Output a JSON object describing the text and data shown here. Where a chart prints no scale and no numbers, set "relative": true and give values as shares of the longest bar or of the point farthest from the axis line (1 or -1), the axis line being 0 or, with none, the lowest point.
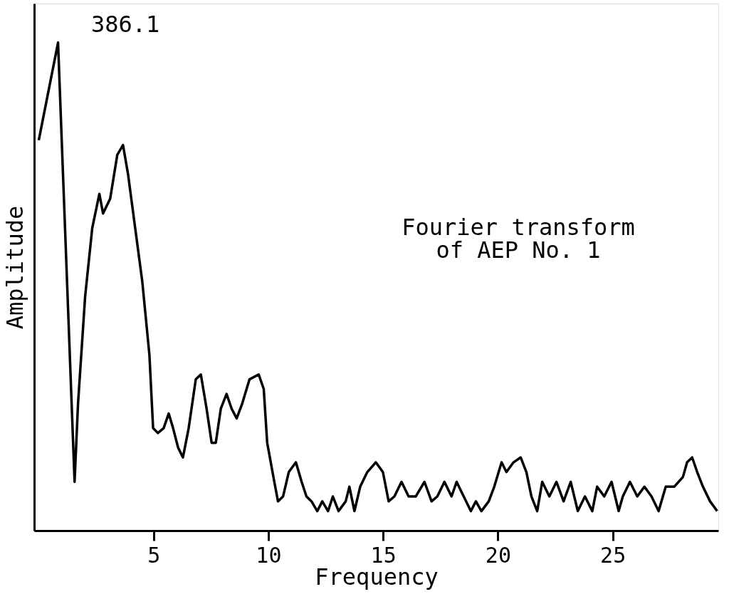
{
  "chart_data": {
    "type": "line",
    "title": "Fourier transform\nof AEP No. 1",
    "xlabel": "Frequency",
    "ylabel": "Amplitude",
    "relative": true,
    "annotations": [
      "386.1"
    ],
    "xlim": [
      -0.2,
      29.6
    ],
    "xticks": [
      5,
      10,
      15,
      20,
      25
    ],
    "grid": false,
    "legend": false,
    "marker": "none",
    "line_style": "solid",
    "x": [
      0.0,
      0.84,
      1.56,
      1.71,
      2.02,
      2.33,
      2.64,
      2.8,
      3.11,
      3.42,
      3.67,
      3.89,
      4.2,
      4.51,
      4.82,
      4.98,
      5.19,
      5.44,
      5.66,
      5.85,
      6.07,
      6.28,
      6.53,
      6.84,
      7.06,
      7.31,
      7.53,
      7.71,
      7.93,
      8.18,
      8.4,
      8.62,
      8.86,
      9.18,
      9.58,
      9.8,
      9.95,
      10.26,
      10.42,
      10.64,
      10.89,
      11.2,
      11.45,
      11.66,
      11.88,
      12.13,
      12.35,
      12.6,
      12.81,
      13.06,
      13.37,
      13.53,
      13.75,
      14.0,
      14.31,
      14.68,
      14.99,
      15.24,
      15.49,
      15.8,
      16.11,
      16.42,
      16.8,
      17.11,
      17.36,
      17.67,
      17.98,
      18.2,
      18.51,
      18.82,
      19.04,
      19.28,
      19.6,
      19.84,
      20.16,
      20.37,
      20.68,
      20.99,
      21.24,
      21.46,
      21.71,
      21.93,
      22.24,
      22.55,
      22.86,
      23.17,
      23.48,
      23.79,
      24.11,
      24.32,
      24.63,
      24.95,
      25.26,
      25.44,
      25.75,
      26.07,
      26.38,
      26.69,
      27.0,
      27.31,
      27.68,
      28.06,
      28.24,
      28.46,
      28.68,
      28.93,
      29.24,
      29.55
    ],
    "series": [
      {
        "color": "#000000",
        "values": [
          0.8,
          1.0,
          0.1,
          0.26,
          0.48,
          0.62,
          0.69,
          0.65,
          0.68,
          0.77,
          0.79,
          0.73,
          0.62,
          0.51,
          0.36,
          0.21,
          0.2,
          0.21,
          0.24,
          0.21,
          0.17,
          0.15,
          0.21,
          0.31,
          0.32,
          0.25,
          0.18,
          0.18,
          0.25,
          0.28,
          0.25,
          0.23,
          0.26,
          0.31,
          0.32,
          0.29,
          0.18,
          0.1,
          0.06,
          0.07,
          0.12,
          0.14,
          0.1,
          0.07,
          0.06,
          0.04,
          0.06,
          0.04,
          0.07,
          0.04,
          0.06,
          0.09,
          0.04,
          0.09,
          0.12,
          0.14,
          0.12,
          0.06,
          0.07,
          0.1,
          0.07,
          0.07,
          0.1,
          0.06,
          0.07,
          0.1,
          0.07,
          0.1,
          0.07,
          0.04,
          0.06,
          0.04,
          0.06,
          0.09,
          0.14,
          0.12,
          0.14,
          0.15,
          0.12,
          0.07,
          0.04,
          0.1,
          0.07,
          0.1,
          0.06,
          0.1,
          0.04,
          0.07,
          0.04,
          0.09,
          0.07,
          0.1,
          0.04,
          0.07,
          0.1,
          0.07,
          0.09,
          0.07,
          0.04,
          0.09,
          0.09,
          0.11,
          0.14,
          0.15,
          0.12,
          0.09,
          0.06,
          0.04
        ]
      }
    ]
  }
}
